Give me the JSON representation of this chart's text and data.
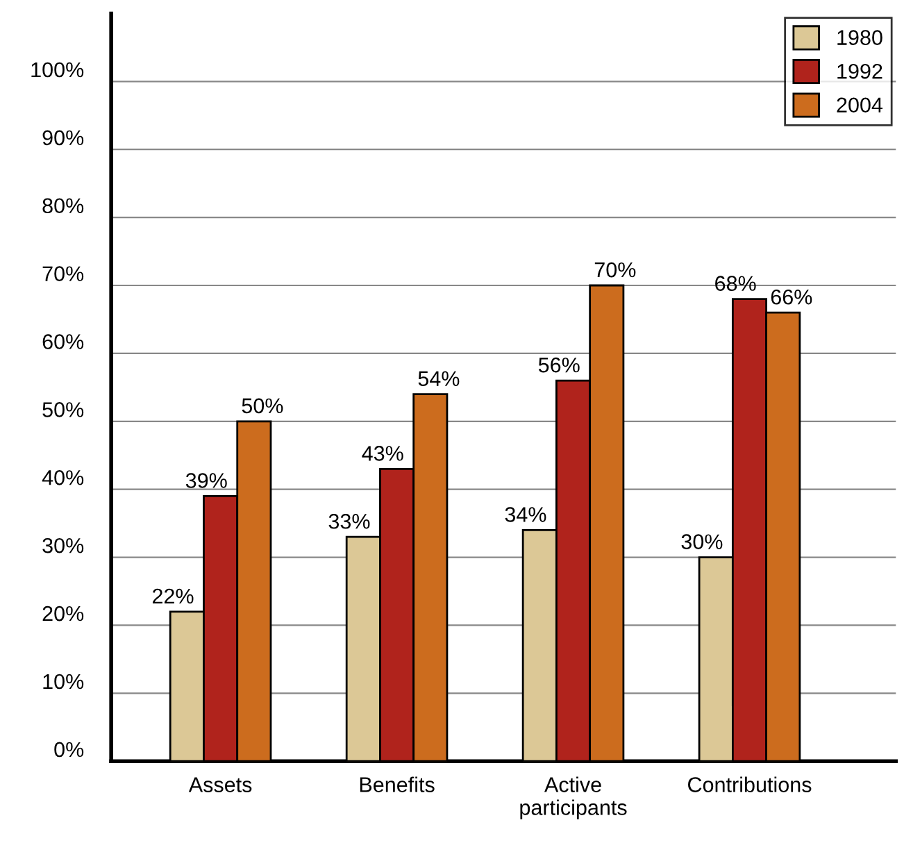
{
  "chart_data": {
    "type": "bar",
    "categories": [
      "Assets",
      "Benefits",
      "Active\nparticipants",
      "Contributions"
    ],
    "series": [
      {
        "name": "1980",
        "color": "#dcc896",
        "values": [
          22,
          33,
          34,
          30
        ],
        "value_labels": [
          "22%",
          "33%",
          "34%",
          "30%"
        ]
      },
      {
        "name": "1992",
        "color": "#b0231c",
        "values": [
          39,
          43,
          56,
          68
        ],
        "value_labels": [
          "39%",
          "43%",
          "56%",
          "68%"
        ]
      },
      {
        "name": "2004",
        "color": "#cc6c1e",
        "values": [
          50,
          54,
          70,
          66
        ],
        "value_labels": [
          "50%",
          "54%",
          "70%",
          "66%"
        ]
      }
    ],
    "ylim": [
      0,
      110
    ],
    "yticks": [
      {
        "value": 0,
        "label": "0%"
      },
      {
        "value": 10,
        "label": "10%"
      },
      {
        "value": 20,
        "label": "20%"
      },
      {
        "value": 30,
        "label": "30%"
      },
      {
        "value": 40,
        "label": "40%"
      },
      {
        "value": 50,
        "label": "50%"
      },
      {
        "value": 60,
        "label": "60%"
      },
      {
        "value": 70,
        "label": "70%"
      },
      {
        "value": 80,
        "label": "80%"
      },
      {
        "value": 90,
        "label": "90%"
      },
      {
        "value": 100,
        "label": "100%"
      }
    ],
    "grid": "y",
    "legend": "top right"
  }
}
